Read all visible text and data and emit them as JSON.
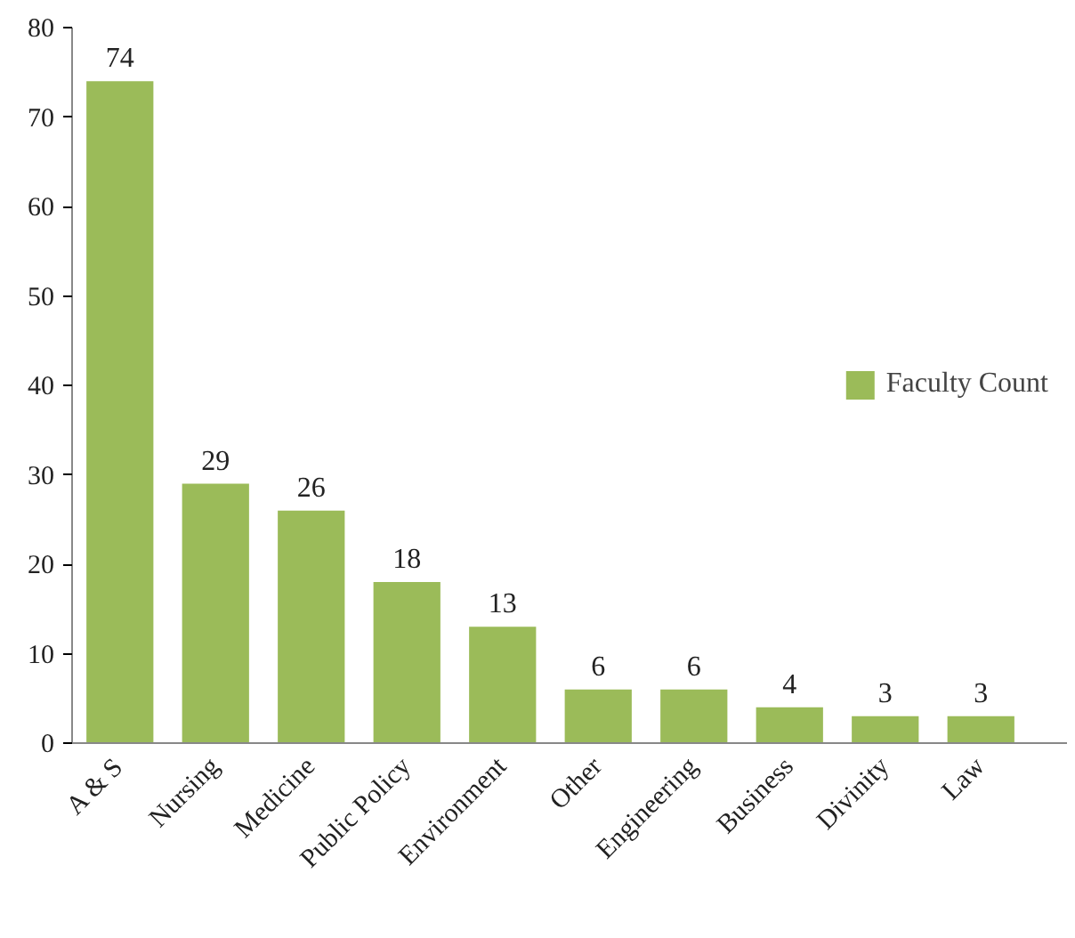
{
  "chart_data": {
    "type": "bar",
    "categories": [
      "A & S",
      "Nursing",
      "Medicine",
      "Public Policy",
      "Environment",
      "Other",
      "Engineering",
      "Business",
      "Divinity",
      "Law"
    ],
    "series": [
      {
        "name": "Faculty Count",
        "color": "#9bbb59",
        "values": [
          74,
          29,
          26,
          18,
          13,
          6,
          6,
          4,
          3,
          3
        ]
      }
    ],
    "ylim": [
      0,
      80
    ],
    "yticks": [
      0,
      10,
      20,
      30,
      40,
      50,
      60,
      70,
      80
    ],
    "data_labels": true,
    "legend": "right",
    "grid": false
  }
}
